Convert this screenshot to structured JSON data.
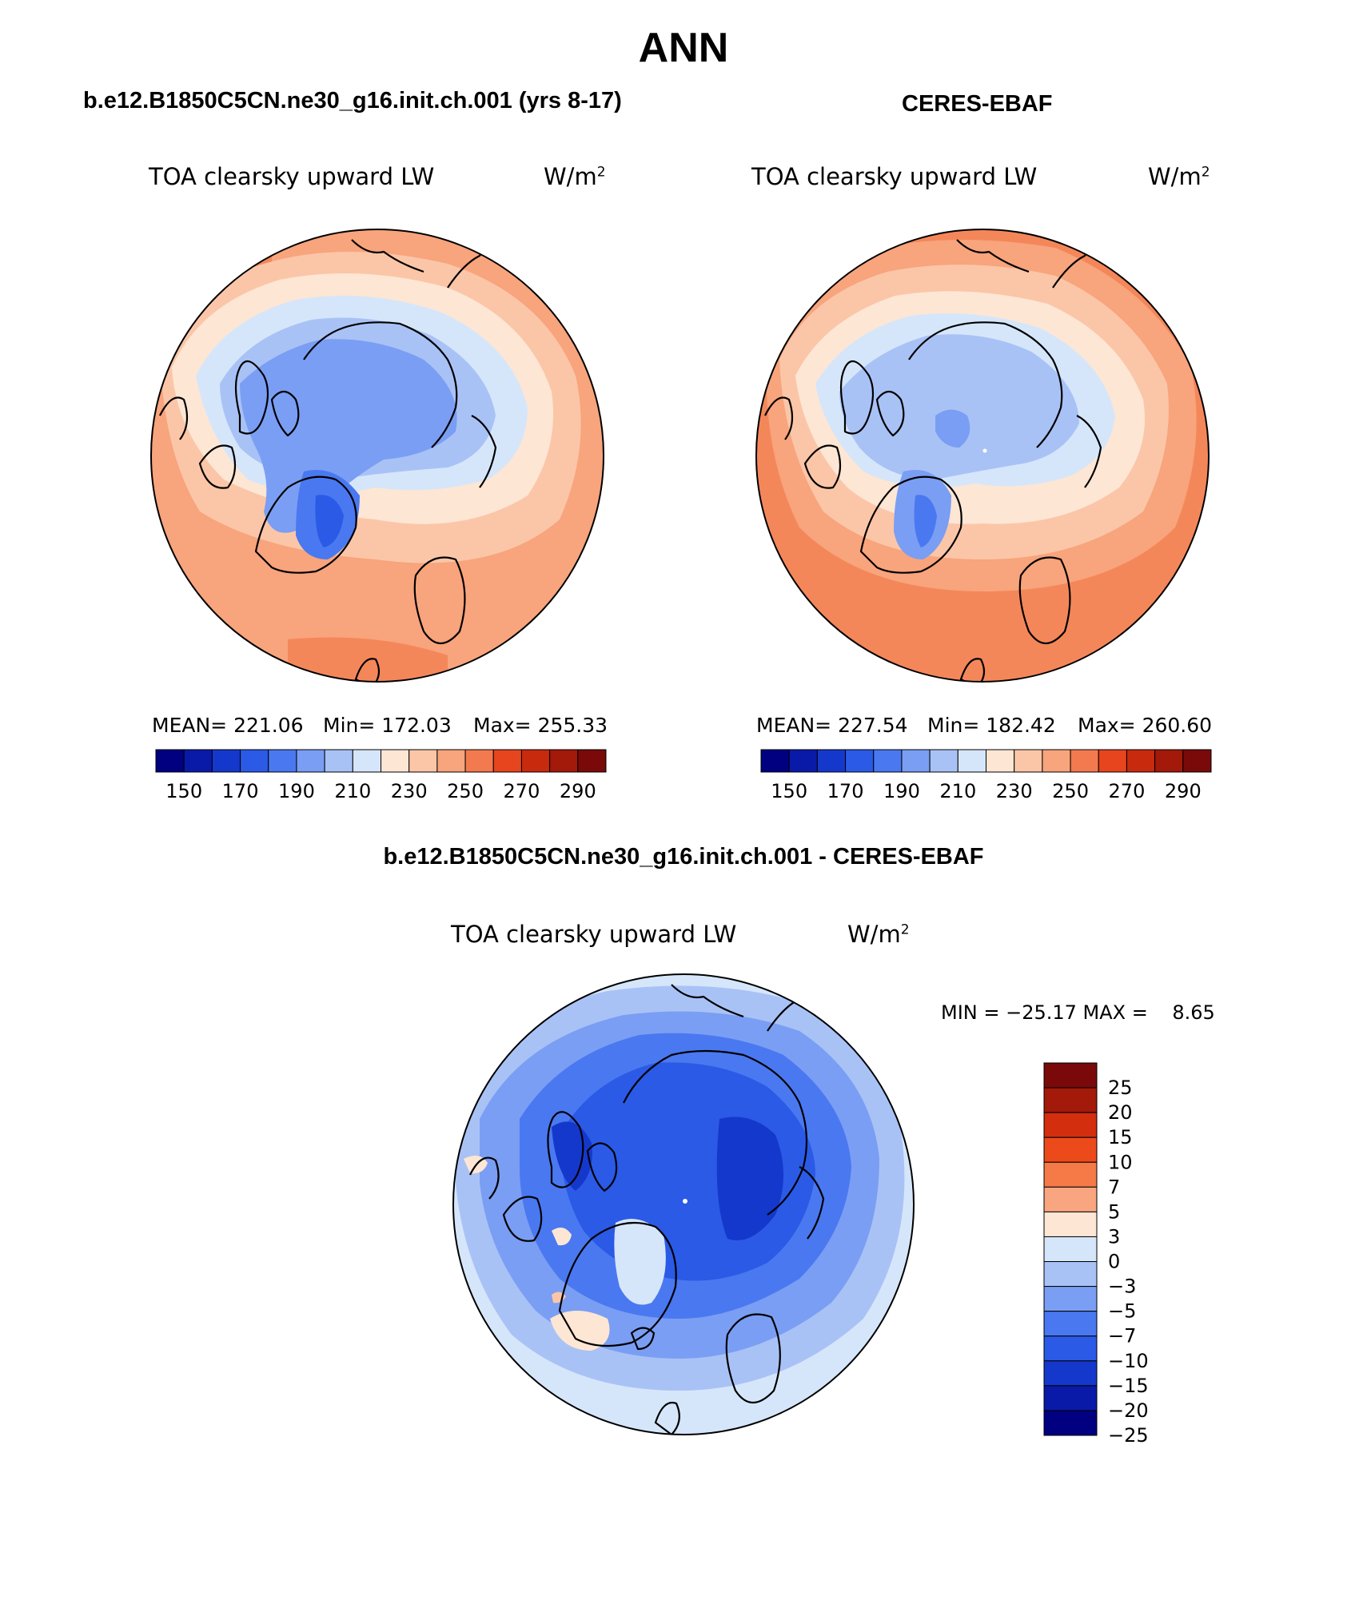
{
  "figure": {
    "season": "ANN",
    "panel_left": {
      "case_title": "b.e12.B1850C5CN.ne30_g16.init.ch.001 (yrs 8-17)",
      "variable": "TOA clearsky upward LW",
      "units_base": "W/m",
      "units_exp": "2",
      "stats": {
        "mean": "MEAN= 221.06",
        "min": "Min= 172.03",
        "max": "Max= 255.33"
      }
    },
    "panel_right": {
      "case_title": "CERES-EBAF",
      "variable": "TOA clearsky upward LW",
      "units_base": "W/m",
      "units_exp": "2",
      "stats": {
        "mean": "MEAN= 227.54",
        "min": "Min= 182.42",
        "max": "Max= 260.60"
      }
    },
    "panel_diff": {
      "case_title": "b.e12.B1850C5CN.ne30_g16.init.ch.001 - CERES-EBAF",
      "variable": "TOA clearsky upward LW",
      "units_base": "W/m",
      "units_exp": "2",
      "minmax": "MIN = −25.17 MAX =    8.65"
    }
  },
  "colorbar_abs": {
    "colors": [
      "#000080",
      "#0a1aa8",
      "#1538cc",
      "#2a5ae6",
      "#4a78f0",
      "#7a9ef3",
      "#a9c2f6",
      "#d6e6fa",
      "#fde6d4",
      "#fbc6a8",
      "#f8a47c",
      "#f27a4e",
      "#e6451e",
      "#c82a0e",
      "#a3190a",
      "#7a0a0a"
    ],
    "labels": [
      "150",
      "170",
      "190",
      "210",
      "230",
      "250",
      "270",
      "290"
    ]
  },
  "colorbar_diff": {
    "colors": [
      "#7a0a0a",
      "#a3190a",
      "#d32e0e",
      "#ec4a1a",
      "#f57a48",
      "#f9a680",
      "#fde6d4",
      "#d6e6fa",
      "#a9c2f6",
      "#7a9ef3",
      "#4a78f0",
      "#2a5ae6",
      "#1538cc",
      "#0a1aa8",
      "#000080"
    ],
    "labels": [
      "25",
      "20",
      "15",
      "10",
      "7",
      "5",
      "3",
      "0",
      "−3",
      "−5",
      "−7",
      "−10",
      "−15",
      "−20",
      "−25"
    ]
  },
  "map_colors": {
    "orange_dark": "#f4875a",
    "orange": "#f8a47c",
    "peach": "#fbc6a8",
    "cream": "#fde6d4",
    "pale_blue": "#d6e6fa",
    "light_blue": "#a9c2f6",
    "mid_blue": "#7a9ef3",
    "blue": "#4a78f0",
    "deep_blue": "#2a5ae6",
    "navy": "#1538cc",
    "outline": "#000000"
  }
}
